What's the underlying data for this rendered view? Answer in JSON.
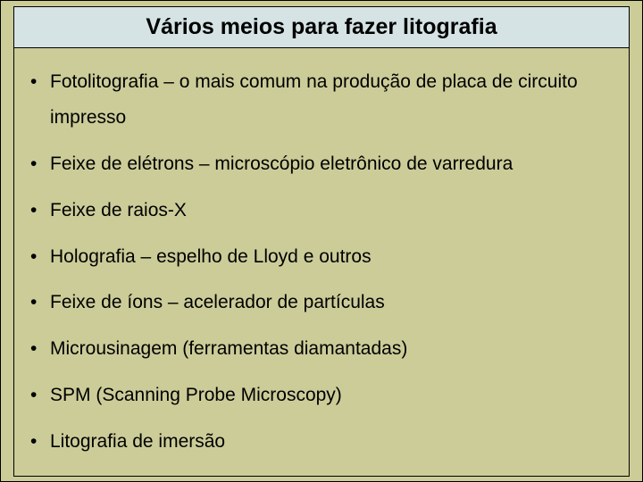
{
  "title": "Vários meios para fazer litografia",
  "items": [
    "Fotolitografia – o mais comum na produção de placa de circuito impresso",
    "Feixe de elétrons – microscópio eletrônico de varredura",
    "Feixe de raios-X",
    "Holografia – espelho de Lloyd e outros",
    "Feixe de íons – acelerador de partículas",
    "Microusinagem (ferramentas diamantadas)",
    "SPM (Scanning Probe Microscopy)",
    "Litografia de imersão"
  ],
  "colors": {
    "background": "#cccc99",
    "title_background": "#d5e3e4",
    "border": "#000000",
    "text": "#000000"
  },
  "typography": {
    "title_fontsize": 25,
    "title_weight": "bold",
    "item_fontsize": 21,
    "font_family": "Arial"
  }
}
